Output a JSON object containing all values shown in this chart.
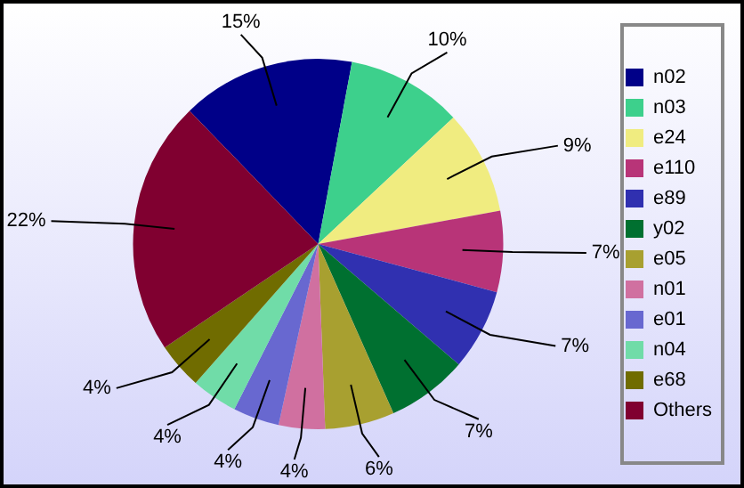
{
  "chart_data": {
    "type": "pie",
    "categories": [
      "n02",
      "n03",
      "e24",
      "e110",
      "e89",
      "y02",
      "e05",
      "n01",
      "e01",
      "n04",
      "e68",
      "Others"
    ],
    "values": [
      15,
      10,
      9,
      7,
      7,
      7,
      6,
      4,
      4,
      4,
      4,
      22
    ],
    "colors": [
      "#000088",
      "#3dd08c",
      "#f0ec80",
      "#b83478",
      "#3030b0",
      "#007030",
      "#a8a030",
      "#d070a0",
      "#6868d0",
      "#70dca8",
      "#706c00",
      "#800030"
    ],
    "value_labels": [
      "15%",
      "10%",
      "9%",
      "7%",
      "7%",
      "7%",
      "6%",
      "4%",
      "4%",
      "4%",
      "4%",
      "22%"
    ],
    "legend": "right"
  }
}
